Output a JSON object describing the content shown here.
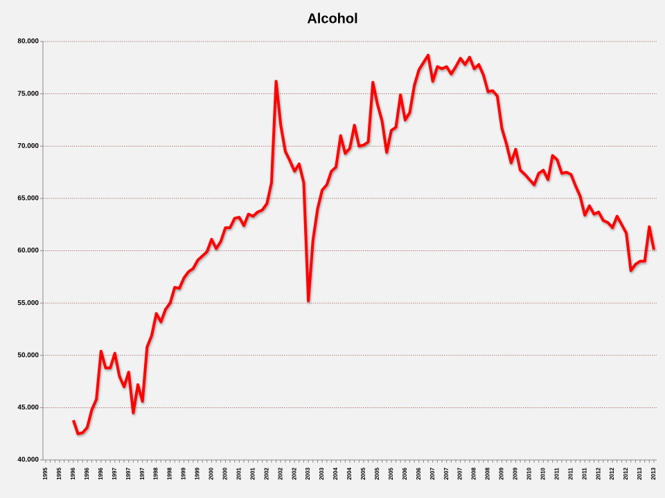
{
  "chart_data": {
    "type": "line",
    "title": "Alcohol",
    "categories": [
      "1995",
      null,
      null,
      "1995",
      null,
      null,
      "1996",
      null,
      null,
      "1996",
      null,
      null,
      "1996",
      null,
      null,
      "1997",
      null,
      null,
      "1997",
      null,
      null,
      "1997",
      null,
      null,
      "1998",
      null,
      null,
      "1998",
      null,
      null,
      "1999",
      null,
      null,
      "1999",
      null,
      null,
      "2000",
      null,
      null,
      "2000",
      null,
      null,
      "2001",
      null,
      null,
      "2001",
      null,
      null,
      "2002",
      null,
      null,
      "2002",
      null,
      null,
      "2002",
      null,
      null,
      "2003",
      null,
      null,
      "2003",
      null,
      null,
      "2004",
      null,
      null,
      "2004",
      null,
      null,
      "2005",
      null,
      null,
      "2005",
      null,
      null,
      "2005",
      null,
      null,
      "2006",
      null,
      null,
      "2006",
      null,
      null,
      "2007",
      null,
      null,
      "2007",
      null,
      null,
      "2007",
      null,
      null,
      "2008",
      null,
      null,
      "2008",
      null,
      null,
      "2009",
      null,
      null,
      "2009",
      null,
      null,
      "2010",
      null,
      null,
      "2010",
      null,
      null,
      "2011",
      null,
      null,
      "2011",
      null,
      null,
      "2011",
      null,
      null,
      "2012",
      null,
      null,
      "2012",
      null,
      null,
      "2012",
      null,
      null,
      "2013",
      null,
      null,
      "2013"
    ],
    "values": [
      null,
      null,
      null,
      null,
      null,
      null,
      43.8,
      42.5,
      42.6,
      43.1,
      44.8,
      45.8,
      50.4,
      48.8,
      48.8,
      50.2,
      48.0,
      47.0,
      48.4,
      44.5,
      47.2,
      45.6,
      50.8,
      51.9,
      54.0,
      53.2,
      54.4,
      55.0,
      56.5,
      56.4,
      57.4,
      58.0,
      58.3,
      59.1,
      59.5,
      59.9,
      61.1,
      60.2,
      60.9,
      62.2,
      62.2,
      63.1,
      63.2,
      62.4,
      63.5,
      63.3,
      63.7,
      63.9,
      64.5,
      66.5,
      76.2,
      72.0,
      69.5,
      68.6,
      67.6,
      68.3,
      66.5,
      55.2,
      61.0,
      64.0,
      65.8,
      66.3,
      67.6,
      68.0,
      71.0,
      69.3,
      69.8,
      72.0,
      70.0,
      70.1,
      70.4,
      76.1,
      74.0,
      72.4,
      69.4,
      71.5,
      71.8,
      74.9,
      72.5,
      73.2,
      75.8,
      77.3,
      78.0,
      78.7,
      76.2,
      77.6,
      77.4,
      77.6,
      76.9,
      77.6,
      78.4,
      77.8,
      78.5,
      77.4,
      77.8,
      76.8,
      75.2,
      75.3,
      74.8,
      71.7,
      70.2,
      68.4,
      69.7,
      67.7,
      67.3,
      66.8,
      66.3,
      67.4,
      67.7,
      66.8,
      69.1,
      68.7,
      67.4,
      67.5,
      67.3,
      66.2,
      65.2,
      63.4,
      64.3,
      63.5,
      63.7,
      62.9,
      62.7,
      62.2,
      63.3,
      62.5,
      61.7,
      58.1,
      58.7,
      59.0,
      59.0,
      62.3,
      60.1
    ],
    "color": "#ff0000",
    "ylim": [
      40,
      80
    ],
    "yticks": [
      {
        "value": 40,
        "label": "40.000"
      },
      {
        "value": 45,
        "label": "45.000"
      },
      {
        "value": 50,
        "label": "50.000"
      },
      {
        "value": 55,
        "label": "55.000"
      },
      {
        "value": 60,
        "label": "60.000"
      },
      {
        "value": 65,
        "label": "65.000"
      },
      {
        "value": 70,
        "label": "70.000"
      },
      {
        "value": 75,
        "label": "75.000"
      },
      {
        "value": 80,
        "label": "80.000"
      }
    ],
    "grid": true
  }
}
